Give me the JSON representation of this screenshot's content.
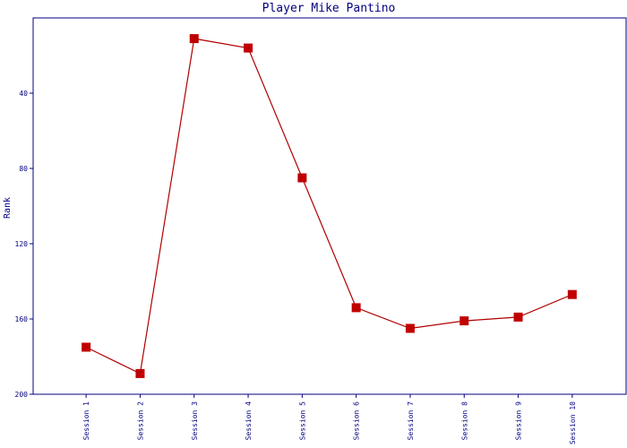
{
  "chart_data": {
    "type": "line",
    "title": "Player Mike Pantino",
    "y_label": "Rank",
    "categories": [
      "Session 1",
      "Session 2",
      "Session 3",
      "Session 4",
      "Session 5",
      "Session 6",
      "Session 7",
      "Session 8",
      "Session 9",
      "Session 10"
    ],
    "values": [
      175,
      189,
      11,
      16,
      85,
      154,
      165,
      161,
      159,
      147
    ],
    "color": "#b00000",
    "marker_color": "#c00000",
    "axis_color": "#000080",
    "ylim": [
      0,
      200
    ],
    "yticks": [
      40,
      80,
      120,
      160,
      200
    ],
    "y_inverted": true
  }
}
